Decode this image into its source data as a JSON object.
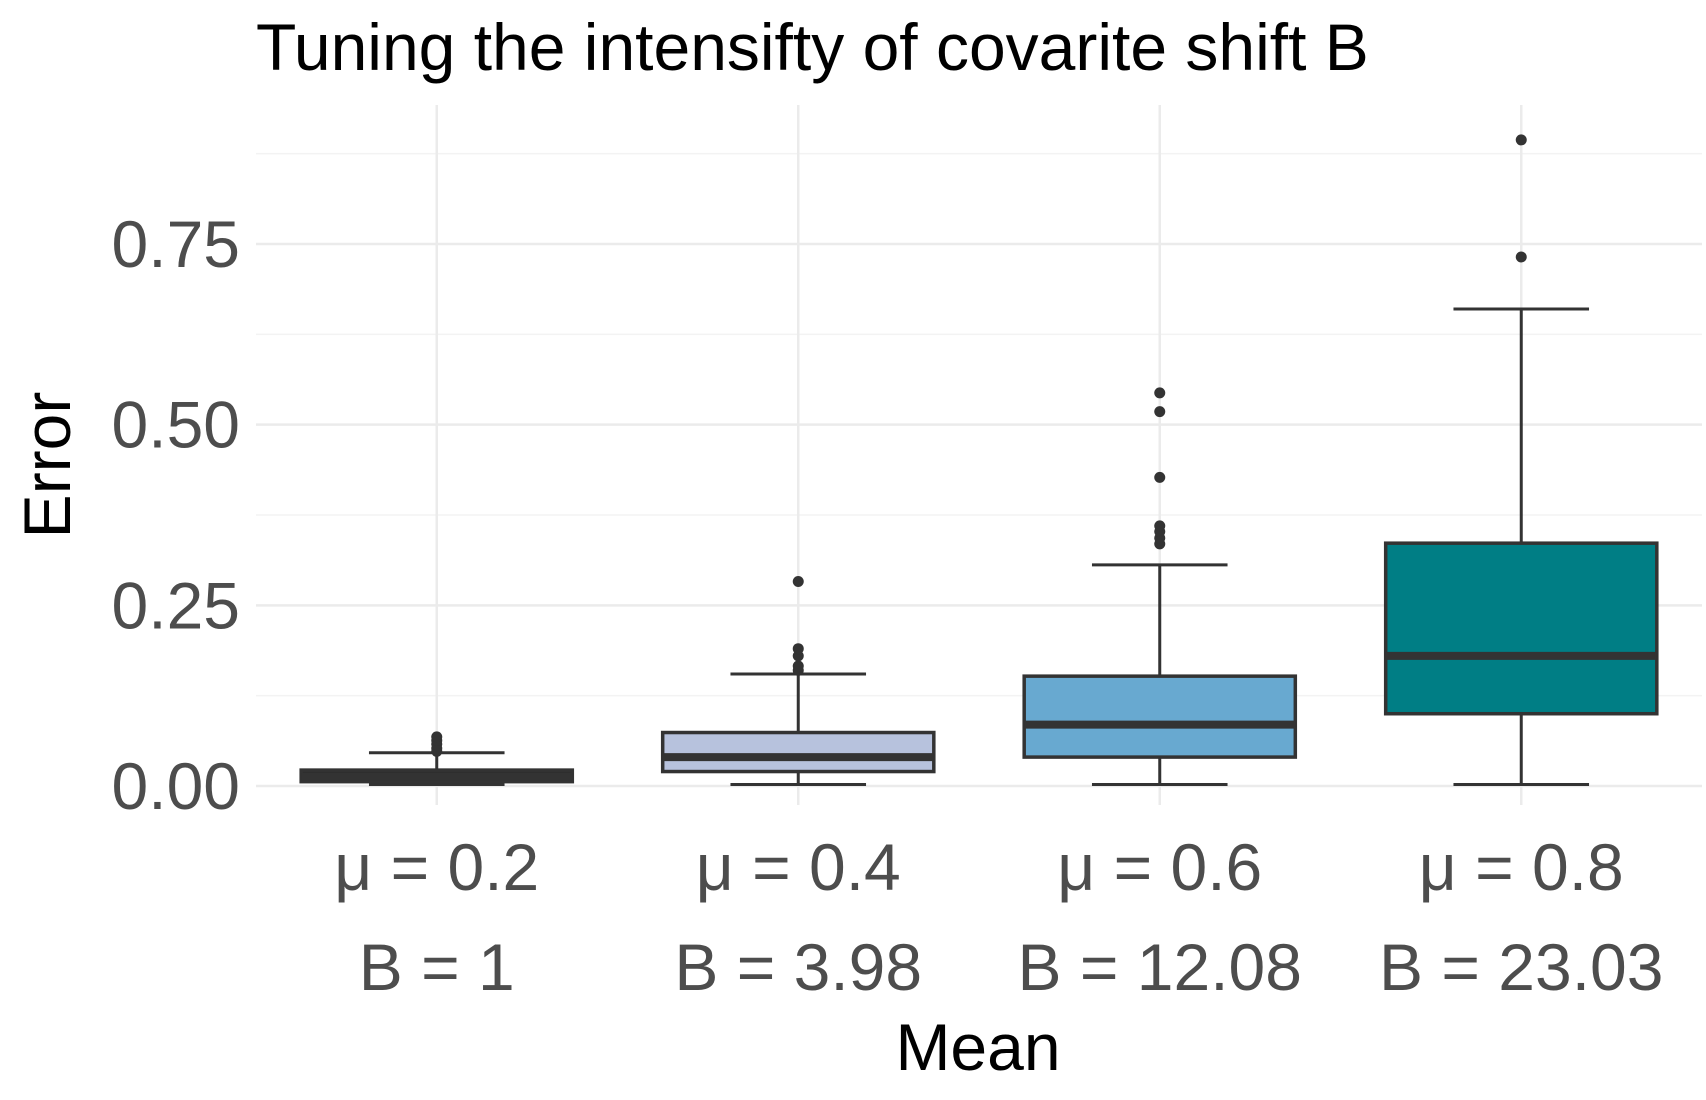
{
  "chart_data": {
    "type": "box",
    "title": "Tuning the intensifty of covarite shift B",
    "xlabel": "Mean",
    "ylabel": "Error",
    "ylim": [
      -0.03,
      0.93
    ],
    "yticks": [
      0.0,
      0.25,
      0.5,
      0.75
    ],
    "ytick_labels": [
      "0.00",
      "0.25",
      "0.50",
      "0.75"
    ],
    "grid": true,
    "categories": [
      {
        "line1": "μ = 0.2",
        "line2": "B = 1"
      },
      {
        "line1": "μ = 0.4",
        "line2": "B = 3.98"
      },
      {
        "line1": "μ = 0.6",
        "line2": "B = 12.08"
      },
      {
        "line1": "μ = 0.8",
        "line2": "B = 23.03"
      }
    ],
    "boxes": [
      {
        "whisker_low": 0.002,
        "q1": 0.006,
        "median": 0.013,
        "q3": 0.022,
        "whisker_high": 0.046,
        "outliers": [
          0.048,
          0.052,
          0.058,
          0.063,
          0.068
        ],
        "color": "#2c2c2c"
      },
      {
        "whisker_low": 0.002,
        "q1": 0.02,
        "median": 0.04,
        "q3": 0.074,
        "whisker_high": 0.155,
        "outliers": [
          0.16,
          0.166,
          0.18,
          0.19,
          0.283
        ],
        "color": "#b7c2dd"
      },
      {
        "whisker_low": 0.002,
        "q1": 0.04,
        "median": 0.085,
        "q3": 0.152,
        "whisker_high": 0.306,
        "outliers": [
          0.335,
          0.343,
          0.352,
          0.36,
          0.427,
          0.518,
          0.544
        ],
        "color": "#68a9d0"
      },
      {
        "whisker_low": 0.002,
        "q1": 0.1,
        "median": 0.18,
        "q3": 0.336,
        "whisker_high": 0.66,
        "outliers": [
          0.732,
          0.894
        ],
        "color": "#007e85"
      }
    ]
  }
}
